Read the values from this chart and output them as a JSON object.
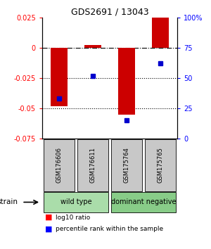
{
  "title": "GDS2691 / 13043",
  "samples": [
    "GSM176606",
    "GSM176611",
    "GSM175764",
    "GSM175765"
  ],
  "log10_ratio": [
    -0.048,
    0.002,
    -0.055,
    0.025
  ],
  "percentile_rank": [
    33,
    52,
    15,
    62
  ],
  "group_ranges": [
    [
      0.0,
      0.5,
      "wild type",
      "#aaddaa"
    ],
    [
      0.5,
      1.0,
      "dominant negative",
      "#88cc88"
    ]
  ],
  "ylim_left": [
    -0.075,
    0.025
  ],
  "ylim_right": [
    0,
    100
  ],
  "yticks_left": [
    -0.075,
    -0.05,
    -0.025,
    0,
    0.025
  ],
  "yticks_right": [
    0,
    25,
    50,
    75,
    100
  ],
  "bar_color": "#cc0000",
  "dot_color": "#0000cc",
  "dotted_lines": [
    -0.025,
    -0.05
  ],
  "background_color": "#ffffff"
}
